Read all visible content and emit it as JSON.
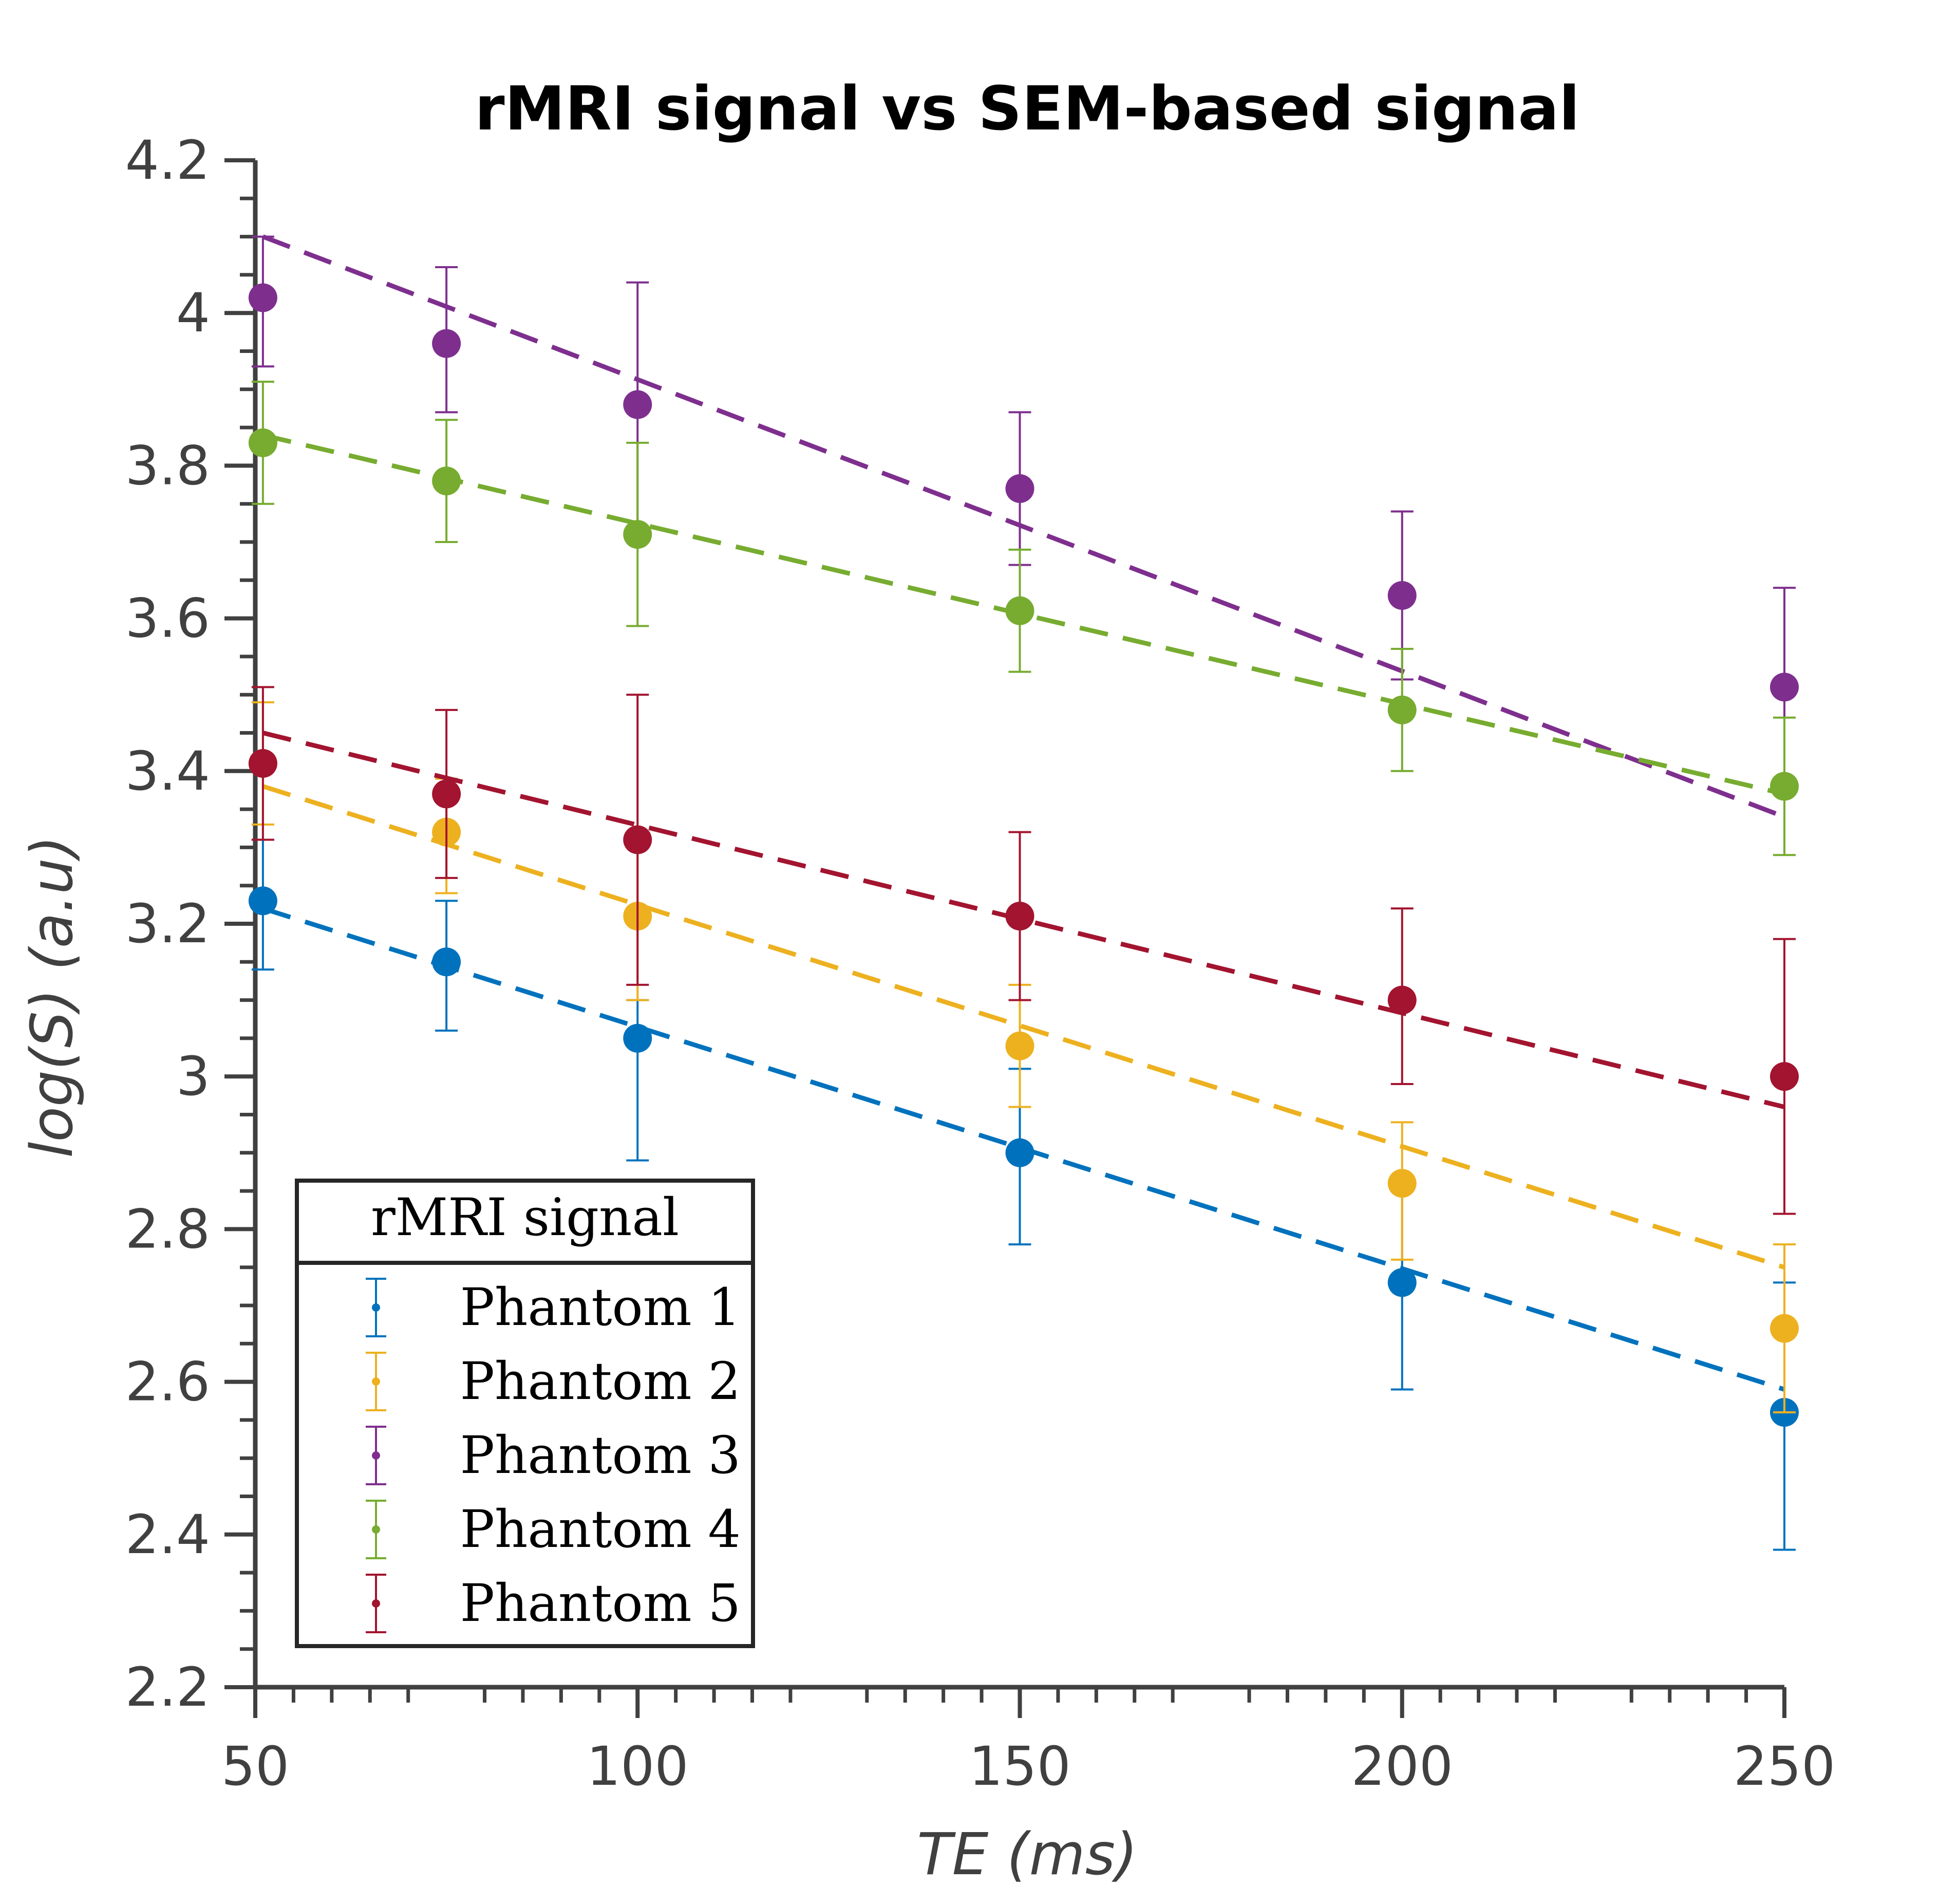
{
  "chart_data": {
    "type": "scatter",
    "title": "rMRI signal vs SEM-based signal",
    "xlabel": "TE (ms)",
    "ylabel": "log(S) (a.u)",
    "xlim": [
      50,
      250
    ],
    "ylim": [
      2.2,
      4.2
    ],
    "x_ticks": [
      "50",
      "100",
      "150",
      "200",
      "250"
    ],
    "y_ticks": [
      "2.2",
      "2.4",
      "2.6",
      "2.8",
      "3",
      "3.2",
      "3.4",
      "3.6",
      "3.8",
      "4",
      "4.2"
    ],
    "grid": false,
    "legend": {
      "title": "rMRI signal",
      "position": "bottom-left"
    },
    "x": [
      51,
      75,
      100,
      150,
      200,
      250
    ],
    "series": [
      {
        "name": "Phantom 1",
        "color": "#0072BD",
        "y": [
          3.23,
          3.15,
          3.05,
          2.9,
          2.73,
          2.56
        ],
        "err_low": [
          3.14,
          3.06,
          2.89,
          2.78,
          2.59,
          2.38
        ],
        "err_high": [
          3.31,
          3.23,
          3.1,
          3.01,
          2.86,
          2.73
        ],
        "fit": [
          3.22,
          2.59
        ]
      },
      {
        "name": "Phantom 2",
        "color": "#EDB120",
        "y": [
          3.41,
          3.32,
          3.21,
          3.04,
          2.86,
          2.67
        ],
        "err_low": [
          3.33,
          3.24,
          3.1,
          2.96,
          2.76,
          2.56
        ],
        "err_high": [
          3.49,
          3.39,
          3.32,
          3.12,
          2.94,
          2.78
        ],
        "fit": [
          3.38,
          2.75
        ]
      },
      {
        "name": "Phantom 3",
        "color": "#7E2F8E",
        "y": [
          4.02,
          3.96,
          3.88,
          3.77,
          3.63,
          3.51
        ],
        "err_low": [
          3.93,
          3.87,
          3.72,
          3.67,
          3.52,
          3.37
        ],
        "err_high": [
          4.1,
          4.06,
          4.04,
          3.87,
          3.74,
          3.64
        ],
        "fit": [
          4.1,
          3.34
        ]
      },
      {
        "name": "Phantom 4",
        "color": "#77AC30",
        "y": [
          3.83,
          3.78,
          3.71,
          3.61,
          3.48,
          3.38
        ],
        "err_low": [
          3.75,
          3.7,
          3.59,
          3.53,
          3.4,
          3.29
        ],
        "err_high": [
          3.91,
          3.86,
          3.83,
          3.69,
          3.56,
          3.47
        ],
        "fit": [
          3.84,
          3.37
        ]
      },
      {
        "name": "Phantom 5",
        "color": "#A2142F",
        "y": [
          3.41,
          3.37,
          3.31,
          3.21,
          3.1,
          3.0
        ],
        "err_low": [
          3.31,
          3.26,
          3.12,
          3.1,
          2.99,
          2.82
        ],
        "err_high": [
          3.51,
          3.48,
          3.5,
          3.32,
          3.22,
          3.18
        ],
        "fit": [
          3.45,
          2.96
        ]
      }
    ]
  }
}
